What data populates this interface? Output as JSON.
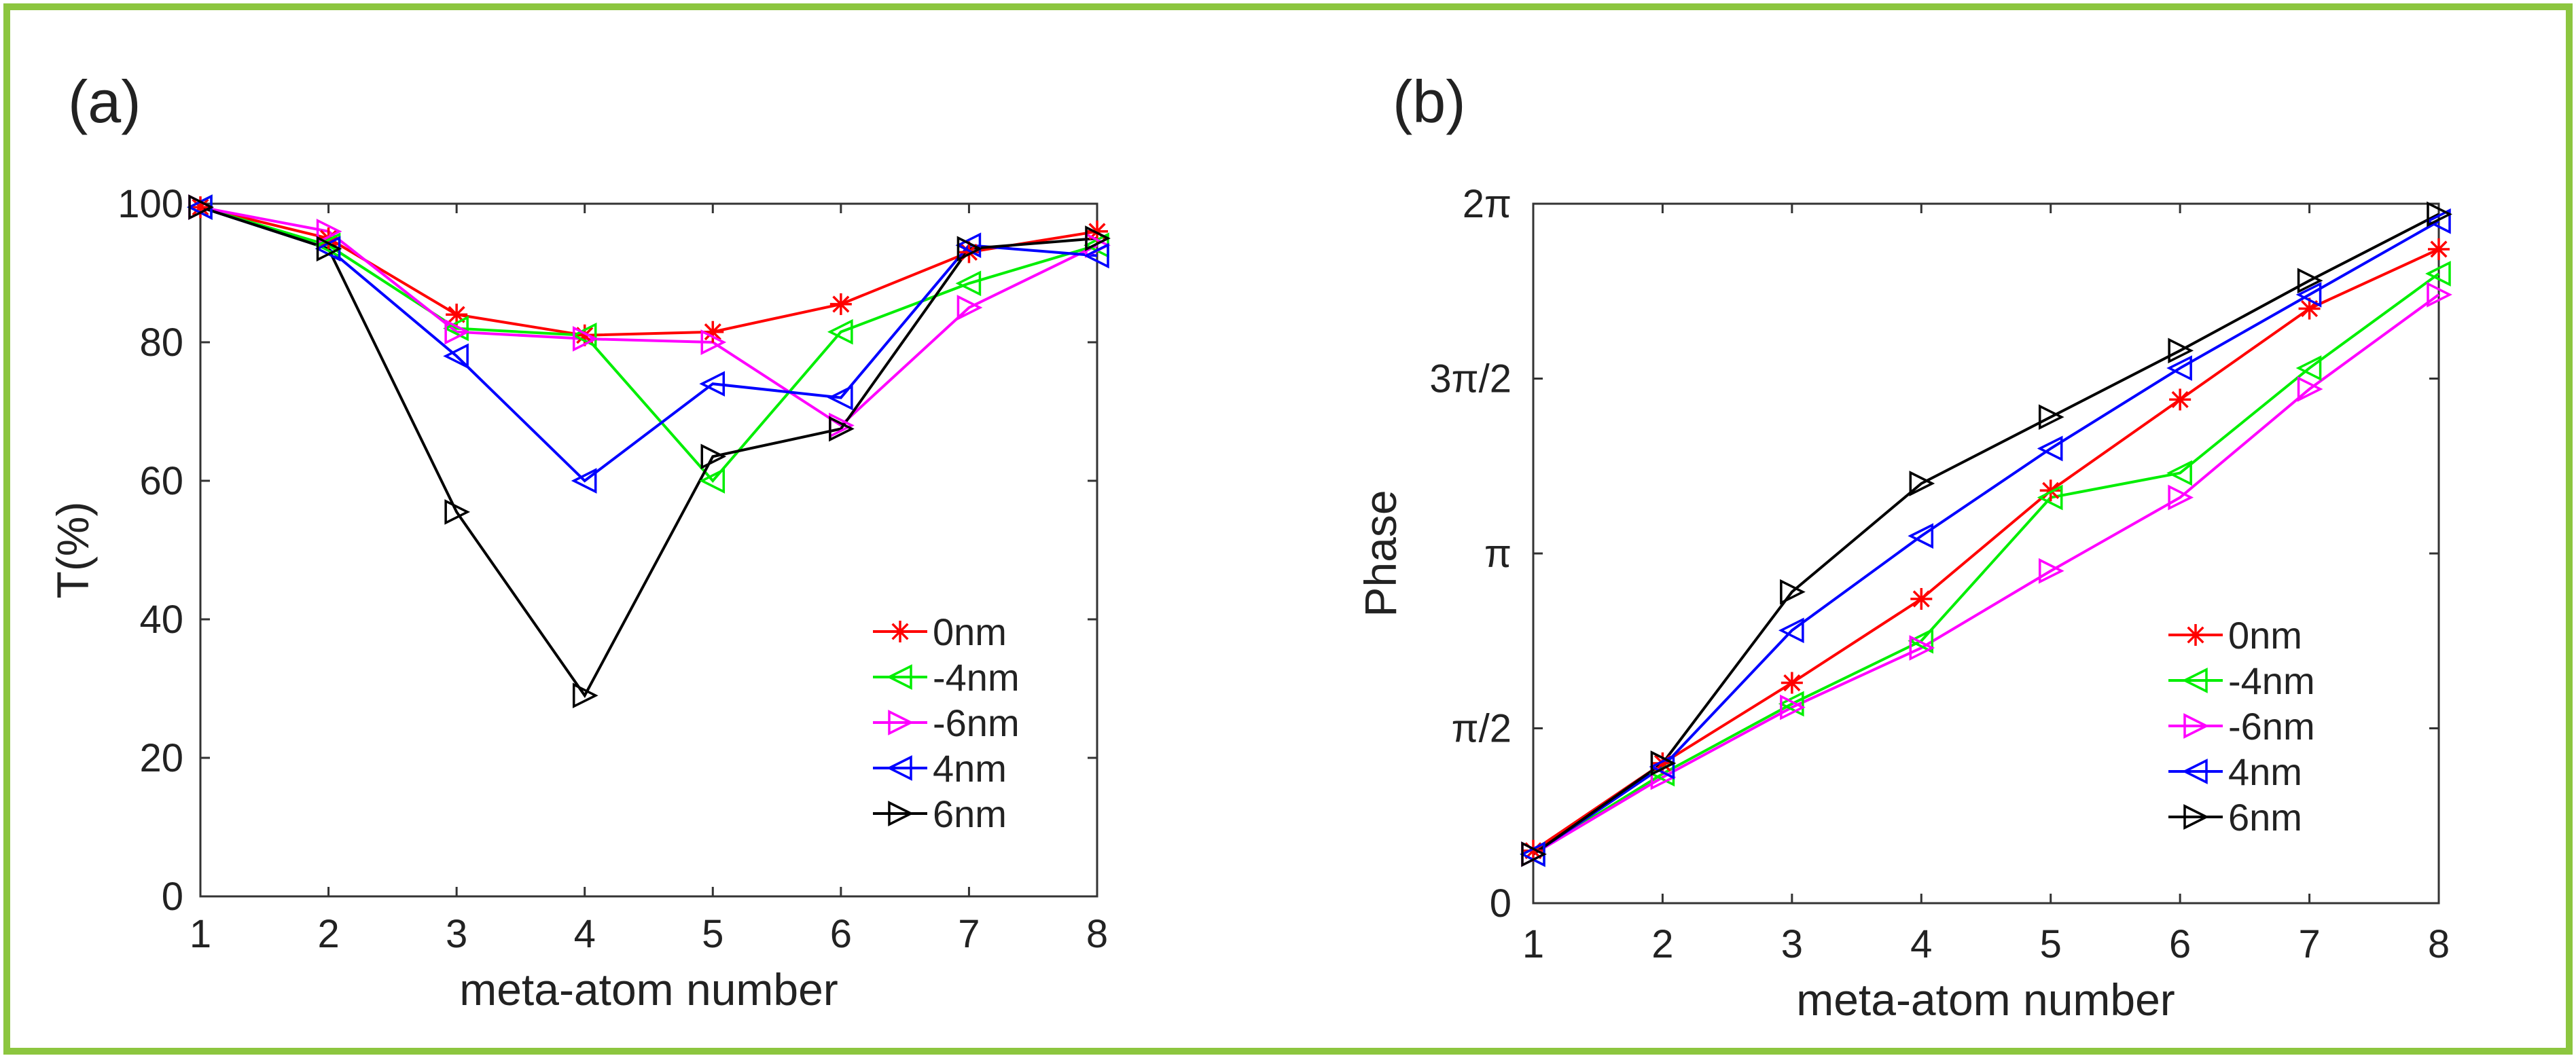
{
  "colors": {
    "frame": "#8cc63f",
    "axis": "#333333",
    "background": "#ffffff"
  },
  "chart_data": [
    {
      "panel_label": "(a)",
      "type": "line",
      "title": "",
      "xlabel": "meta-atom number",
      "ylabel": "T(%)",
      "xlim": [
        1,
        8
      ],
      "ylim": [
        0,
        100
      ],
      "x_ticks": [
        1,
        2,
        3,
        4,
        5,
        6,
        7,
        8
      ],
      "x_tick_labels": [
        "1",
        "2",
        "3",
        "4",
        "5",
        "6",
        "7",
        "8"
      ],
      "y_ticks": [
        0,
        20,
        40,
        60,
        80,
        100
      ],
      "y_tick_labels": [
        "0",
        "20",
        "40",
        "60",
        "80",
        "100"
      ],
      "grid": false,
      "legend_position": "bottom-right",
      "x": [
        1,
        2,
        3,
        4,
        5,
        6,
        7,
        8
      ],
      "series": [
        {
          "name": "0nm",
          "color": "#ff0000",
          "marker": "asterisk",
          "values": [
            99.5,
            95,
            84,
            81,
            81.5,
            85.5,
            93,
            96
          ]
        },
        {
          "name": "-4nm",
          "color": "#00ee00",
          "marker": "triangle-left",
          "values": [
            99.5,
            94,
            82,
            81,
            60,
            81.5,
            88.5,
            94
          ]
        },
        {
          "name": "-6nm",
          "color": "#ff00ff",
          "marker": "triangle-right",
          "values": [
            99.5,
            96,
            81.5,
            80.5,
            80,
            68,
            85,
            94
          ]
        },
        {
          "name": "4nm",
          "color": "#0000ff",
          "marker": "triangle-left",
          "values": [
            99.5,
            93.5,
            78,
            60,
            74,
            72,
            94,
            92.5
          ]
        },
        {
          "name": "6nm",
          "color": "#000000",
          "marker": "triangle-right",
          "values": [
            99.5,
            93.5,
            55.5,
            29,
            63.5,
            67.5,
            93.5,
            95
          ]
        }
      ]
    },
    {
      "panel_label": "(b)",
      "type": "line",
      "title": "",
      "xlabel": "meta-atom number",
      "ylabel": "Phase",
      "xlim": [
        1,
        8
      ],
      "ylim": [
        0,
        2
      ],
      "y_unit": "pi",
      "x_ticks": [
        1,
        2,
        3,
        4,
        5,
        6,
        7,
        8
      ],
      "x_tick_labels": [
        "1",
        "2",
        "3",
        "4",
        "5",
        "6",
        "7",
        "8"
      ],
      "y_ticks": [
        0,
        0.5,
        1,
        1.5,
        2
      ],
      "y_tick_labels": [
        "0",
        "π/2",
        "π",
        "3π/2",
        "2π"
      ],
      "grid": false,
      "legend_position": "bottom-right",
      "x": [
        1,
        2,
        3,
        4,
        5,
        6,
        7,
        8
      ],
      "series": [
        {
          "name": "0nm",
          "color": "#ff0000",
          "marker": "asterisk",
          "values": [
            0.15,
            0.4,
            0.63,
            0.87,
            1.18,
            1.44,
            1.7,
            1.87
          ]
        },
        {
          "name": "-4nm",
          "color": "#00ee00",
          "marker": "triangle-left",
          "values": [
            0.14,
            0.37,
            0.57,
            0.75,
            1.16,
            1.23,
            1.53,
            1.8
          ]
        },
        {
          "name": "-6nm",
          "color": "#ff00ff",
          "marker": "triangle-right",
          "values": [
            0.14,
            0.36,
            0.56,
            0.73,
            0.95,
            1.16,
            1.47,
            1.74
          ]
        },
        {
          "name": "4nm",
          "color": "#0000ff",
          "marker": "triangle-left",
          "values": [
            0.14,
            0.39,
            0.78,
            1.05,
            1.3,
            1.53,
            1.74,
            1.95
          ]
        },
        {
          "name": "6nm",
          "color": "#000000",
          "marker": "triangle-right",
          "values": [
            0.14,
            0.4,
            0.89,
            1.2,
            1.39,
            1.58,
            1.78,
            1.97
          ]
        }
      ]
    }
  ]
}
